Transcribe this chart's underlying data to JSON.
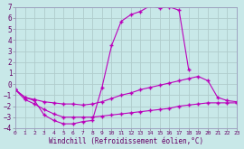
{
  "xlabel": "Windchill (Refroidissement éolien,°C)",
  "background_color": "#c8e8e8",
  "grid_color": "#b0cccc",
  "line_color": "#bb00bb",
  "xmin": 0,
  "xmax": 23,
  "ymin": -4,
  "ymax": 7,
  "curve1_x": [
    0,
    1,
    2,
    3,
    4,
    5,
    6,
    7,
    8,
    9,
    10,
    11,
    12,
    13,
    14,
    15,
    16,
    17,
    18
  ],
  "curve1_y": [
    -0.5,
    -1.2,
    -1.5,
    -2.8,
    -3.3,
    -3.6,
    -3.6,
    -3.4,
    -3.3,
    -0.3,
    3.5,
    5.7,
    6.3,
    6.6,
    7.1,
    6.9,
    7.0,
    6.7,
    1.3
  ],
  "curve2_x": [
    0,
    1,
    2,
    3,
    4,
    5,
    6,
    7,
    8,
    9,
    10,
    11,
    12,
    13,
    14,
    15,
    16,
    17,
    18,
    19,
    20,
    21,
    22,
    23
  ],
  "curve2_y": [
    -0.5,
    -1.2,
    -1.4,
    -1.6,
    -1.7,
    -1.8,
    -1.8,
    -1.9,
    -1.8,
    -1.6,
    -1.3,
    -1.0,
    -0.8,
    -0.5,
    -0.3,
    -0.1,
    0.1,
    0.3,
    0.5,
    0.7,
    0.3,
    -1.2,
    -1.5,
    -1.6
  ],
  "curve3_x": [
    0,
    1,
    2,
    3,
    4,
    5,
    6,
    7,
    8,
    9,
    10,
    11,
    12,
    13,
    14,
    15,
    16,
    17,
    18,
    19,
    20,
    21,
    22,
    23
  ],
  "curve3_y": [
    -0.5,
    -1.4,
    -1.8,
    -2.3,
    -2.7,
    -3.0,
    -3.0,
    -3.0,
    -3.0,
    -2.9,
    -2.8,
    -2.7,
    -2.6,
    -2.5,
    -2.4,
    -2.3,
    -2.2,
    -2.0,
    -1.9,
    -1.8,
    -1.7,
    -1.7,
    -1.7,
    -1.7
  ]
}
